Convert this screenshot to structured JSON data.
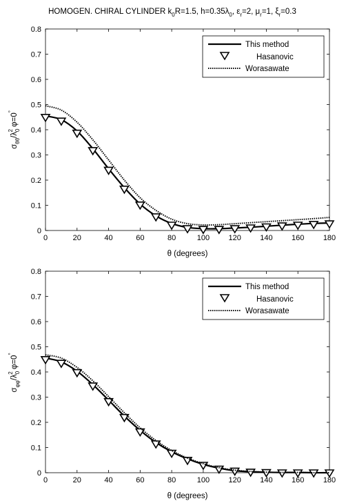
{
  "chart_data": [
    {
      "type": "line",
      "title": "HOMOGEN. CHIRAL CYLINDER k0R=1.5, h=0.35λ0, εr=2, μr=1, ξr=0.3",
      "title_parts": {
        "p1": "HOMOGEN. CHIRAL CYLINDER k",
        "s1": "0",
        "p2": "R=1.5, h=0.35λ",
        "s2": "0",
        "p3": ", ε",
        "s3": "r",
        "p4": "=2, μ",
        "s4": "r",
        "p5": "=1, ξ",
        "s5": "r",
        "p6": "=0.3"
      },
      "xlabel": "θ (degrees)",
      "ylabel_parts": {
        "p1": "σ",
        "s1": "θθ",
        "p2": "/λ",
        "s2": "0",
        "sup2": "2",
        "p3": "  φ=0",
        "sup3": "°"
      },
      "xlim": [
        0,
        180
      ],
      "ylim": [
        0,
        0.8
      ],
      "xticks": [
        "0",
        "20",
        "40",
        "60",
        "80",
        "100",
        "120",
        "140",
        "160",
        "180"
      ],
      "yticks": [
        "0",
        "0.1",
        "0.2",
        "0.3",
        "0.4",
        "0.5",
        "0.6",
        "0.7",
        "0.8"
      ],
      "grid": false,
      "legend_position": "top-right",
      "series": [
        {
          "name": "This method",
          "style": "solid",
          "x": [
            0,
            10,
            20,
            30,
            40,
            50,
            60,
            70,
            80,
            90,
            100,
            110,
            120,
            130,
            140,
            150,
            160,
            170,
            180
          ],
          "y": [
            0.455,
            0.44,
            0.395,
            0.325,
            0.245,
            0.17,
            0.105,
            0.058,
            0.028,
            0.012,
            0.007,
            0.007,
            0.01,
            0.013,
            0.017,
            0.021,
            0.025,
            0.028,
            0.03
          ]
        },
        {
          "name": "Hasanovic",
          "style": "triangle-markers",
          "x": [
            0,
            10,
            20,
            30,
            40,
            50,
            60,
            70,
            80,
            90,
            100,
            110,
            120,
            130,
            140,
            150,
            160,
            170,
            180
          ],
          "y": [
            0.45,
            0.435,
            0.387,
            0.318,
            0.24,
            0.165,
            0.102,
            0.055,
            0.022,
            0.008,
            0.005,
            0.005,
            0.008,
            0.011,
            0.015,
            0.019,
            0.022,
            0.025,
            0.027
          ]
        },
        {
          "name": "Worasawate",
          "style": "dotted",
          "x": [
            0,
            10,
            20,
            30,
            40,
            50,
            60,
            70,
            80,
            90,
            100,
            110,
            120,
            130,
            140,
            150,
            160,
            170,
            180
          ],
          "y": [
            0.495,
            0.478,
            0.43,
            0.36,
            0.28,
            0.2,
            0.13,
            0.08,
            0.045,
            0.027,
            0.022,
            0.023,
            0.027,
            0.031,
            0.035,
            0.039,
            0.043,
            0.047,
            0.052
          ]
        }
      ]
    },
    {
      "type": "line",
      "title": "",
      "xlabel": "θ (degrees)",
      "ylabel_parts": {
        "p1": "σ",
        "s1": "φφ",
        "p2": "/λ",
        "s2": "0",
        "sup2": "2",
        "p3": "  φ=0",
        "sup3": "°"
      },
      "xlim": [
        0,
        180
      ],
      "ylim": [
        0,
        0.8
      ],
      "xticks": [
        "0",
        "20",
        "40",
        "60",
        "80",
        "100",
        "120",
        "140",
        "160",
        "180"
      ],
      "yticks": [
        "0",
        "0.1",
        "0.2",
        "0.3",
        "0.4",
        "0.5",
        "0.6",
        "0.7",
        "0.8"
      ],
      "grid": false,
      "legend_position": "top-right",
      "series": [
        {
          "name": "This method",
          "style": "solid",
          "x": [
            0,
            10,
            20,
            30,
            40,
            50,
            60,
            70,
            80,
            90,
            100,
            110,
            120,
            130,
            140,
            150,
            160,
            170,
            180
          ],
          "y": [
            0.455,
            0.44,
            0.403,
            0.35,
            0.288,
            0.225,
            0.168,
            0.12,
            0.083,
            0.055,
            0.033,
            0.018,
            0.008,
            0.004,
            0.002,
            0.001,
            0.001,
            0.0,
            0.0
          ]
        },
        {
          "name": "Hasanovic",
          "style": "triangle-markers",
          "x": [
            0,
            10,
            20,
            30,
            40,
            50,
            60,
            70,
            80,
            90,
            100,
            110,
            120,
            130,
            140,
            150,
            160,
            170,
            180
          ],
          "y": [
            0.45,
            0.435,
            0.398,
            0.345,
            0.283,
            0.22,
            0.163,
            0.115,
            0.078,
            0.05,
            0.03,
            0.015,
            0.007,
            0.003,
            0.001,
            0.0,
            0.0,
            0.0,
            0.0
          ]
        },
        {
          "name": "Worasawate",
          "style": "dotted",
          "x": [
            0,
            10,
            20,
            30,
            40,
            50,
            60,
            70,
            80,
            90,
            100,
            110,
            120,
            130,
            140,
            150,
            160,
            170,
            180
          ],
          "y": [
            0.468,
            0.455,
            0.418,
            0.365,
            0.302,
            0.238,
            0.178,
            0.128,
            0.088,
            0.058,
            0.036,
            0.02,
            0.01,
            0.005,
            0.002,
            0.001,
            0.001,
            0.0,
            0.0
          ]
        }
      ]
    }
  ]
}
